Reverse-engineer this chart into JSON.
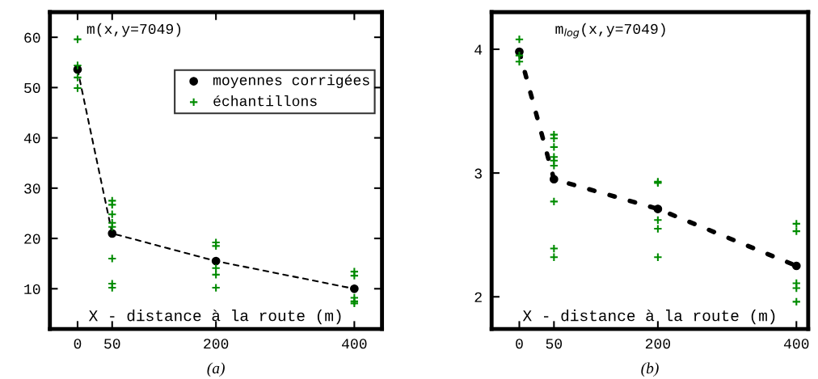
{
  "chart_data": [
    {
      "type": "scatter",
      "title": "m(x,y=7049)",
      "xlabel": "X - distance à la route (m)",
      "annotations": [
        "(a)"
      ],
      "xlim": [
        -40,
        440
      ],
      "xticks": [
        0,
        50,
        200,
        400
      ],
      "ylim": [
        2,
        65
      ],
      "yticks": [
        10,
        20,
        30,
        40,
        50,
        60
      ],
      "legend": "top right",
      "grid": false,
      "series": [
        {
          "type": "line",
          "line_style": "dashed",
          "marker": "none",
          "color": "#000000",
          "x": [
            0,
            50,
            200,
            400
          ],
          "values": [
            53.6,
            21.0,
            15.5,
            10.0
          ]
        },
        {
          "name": "moyennes corrigées",
          "marker": "circle",
          "color": "#000000",
          "x": [
            0,
            50,
            200,
            400
          ],
          "values": [
            53.6,
            21.0,
            15.5,
            10.0
          ]
        },
        {
          "name": "échantillons",
          "marker": "cross",
          "color": "#008c00",
          "x": [
            0,
            0,
            0,
            0,
            50,
            50,
            50,
            50,
            50,
            50,
            50,
            50,
            200,
            200,
            200,
            200,
            200,
            400,
            400,
            400,
            400,
            400
          ],
          "values": [
            59.6,
            54.4,
            52.0,
            49.9,
            27.5,
            26.7,
            24.8,
            23.1,
            22.3,
            16.0,
            11.0,
            10.2,
            19.2,
            18.5,
            14.1,
            12.8,
            10.2,
            13.4,
            12.6,
            8.2,
            7.5,
            7.1
          ]
        }
      ]
    },
    {
      "type": "scatter",
      "title": "m$_{log}$(x,y=7049)",
      "xlabel": "X - distance à la route (m)",
      "annotations": [
        "(b)"
      ],
      "xlim": [
        -40,
        417
      ],
      "xticks": [
        0,
        50,
        200,
        400
      ],
      "ylim": [
        1.74,
        4.3
      ],
      "yticks": [
        2,
        3,
        4
      ],
      "legend": false,
      "grid": false,
      "series": [
        {
          "type": "line",
          "line_style": "dashed",
          "marker": "none",
          "color": "#000000",
          "x": [
            0,
            50,
            200,
            400
          ],
          "values": [
            3.98,
            2.95,
            2.71,
            2.25
          ]
        },
        {
          "marker": "circle",
          "color": "#000000",
          "x": [
            0,
            50,
            200,
            400
          ],
          "values": [
            3.98,
            2.95,
            2.71,
            2.25
          ]
        },
        {
          "marker": "cross",
          "color": "#008c00",
          "x": [
            0,
            0,
            0,
            50,
            50,
            50,
            50,
            50,
            50,
            50,
            50,
            50,
            200,
            200,
            200,
            200,
            200,
            400,
            400,
            400,
            400,
            400
          ],
          "values": [
            4.08,
            3.95,
            3.9,
            3.31,
            3.28,
            3.21,
            3.13,
            3.1,
            3.06,
            2.77,
            2.39,
            2.32,
            2.93,
            2.92,
            2.62,
            2.55,
            2.32,
            2.59,
            2.53,
            2.11,
            2.07,
            1.96
          ]
        }
      ]
    }
  ]
}
